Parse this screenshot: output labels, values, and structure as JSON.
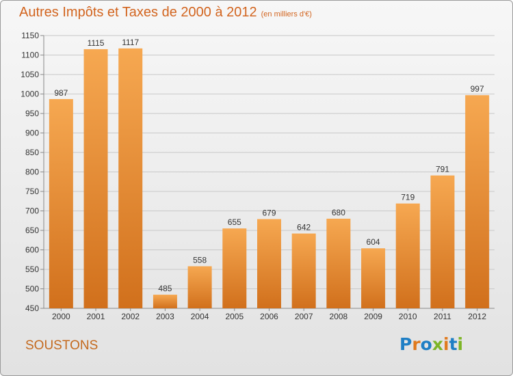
{
  "chart_data": {
    "type": "bar",
    "title": "Autres Impôts et Taxes de 2000 à 2012",
    "subtitle": "(en milliers d'€)",
    "categories": [
      "2000",
      "2001",
      "2002",
      "2003",
      "2004",
      "2005",
      "2006",
      "2007",
      "2008",
      "2009",
      "2010",
      "2011",
      "2012"
    ],
    "values": [
      987,
      1115,
      1117,
      485,
      558,
      655,
      679,
      642,
      680,
      604,
      719,
      791,
      997
    ],
    "ylim": [
      450,
      1150
    ],
    "yticks": [
      450,
      500,
      550,
      600,
      650,
      700,
      750,
      800,
      850,
      900,
      950,
      1000,
      1050,
      1100,
      1150
    ],
    "grid": true,
    "bar_color_top": "#f6a851",
    "bar_color_bottom": "#d1701c"
  },
  "footer": {
    "commune": "SOUSTONS",
    "logo_text": "Proxiti"
  },
  "colors": {
    "title": "#d2641e",
    "commune": "#c4691d",
    "logo_letters": [
      "#1f7fc5",
      "#e07a1e",
      "#1f7fc5",
      "#7db526",
      "#e07a1e",
      "#1f7fc5",
      "#7db526"
    ]
  }
}
